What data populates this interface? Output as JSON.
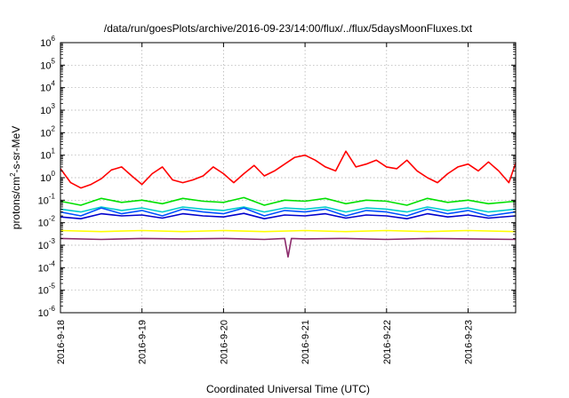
{
  "chart_data": {
    "type": "line",
    "title": "/data/run/goesPlots/archive/2016-09-23/14:00/flux/../flux/5daysMoonFluxes.txt",
    "xlabel": "Coordinated Universal Time (UTC)",
    "ylabel_parts": {
      "base": "protons/cm",
      "sup": "2",
      "rest": "-s-sr-MeV"
    },
    "y_scale": "log",
    "ylim": [
      1e-06,
      1000000.0
    ],
    "xlim": [
      "2016-09-18 00:00",
      "2016-09-23 14:00"
    ],
    "grid": true,
    "legend": "none",
    "x_ticks": [
      "2016-9-18",
      "2016-9-19",
      "2016-9-20",
      "2016-9-21",
      "2016-9-22",
      "2016-9-23"
    ],
    "y_ticks": [
      {
        "base": "10",
        "exp": "-6"
      },
      {
        "base": "10",
        "exp": "-5"
      },
      {
        "base": "10",
        "exp": "-4"
      },
      {
        "base": "10",
        "exp": "-3"
      },
      {
        "base": "10",
        "exp": "-2"
      },
      {
        "base": "10",
        "exp": "-1"
      },
      {
        "base": "10",
        "exp": "0"
      },
      {
        "base": "10",
        "exp": "1"
      },
      {
        "base": "10",
        "exp": "2"
      },
      {
        "base": "10",
        "exp": "3"
      },
      {
        "base": "10",
        "exp": "4"
      },
      {
        "base": "10",
        "exp": "5"
      },
      {
        "base": "10",
        "exp": "6"
      }
    ],
    "series": [
      {
        "color": "#ff0000",
        "x": [
          "2016-09-18 00:00",
          "2016-09-18 03:00",
          "2016-09-18 06:00",
          "2016-09-18 09:00",
          "2016-09-18 12:00",
          "2016-09-18 15:00",
          "2016-09-18 18:00",
          "2016-09-18 21:00",
          "2016-09-19 00:00",
          "2016-09-19 03:00",
          "2016-09-19 06:00",
          "2016-09-19 09:00",
          "2016-09-19 12:00",
          "2016-09-19 15:00",
          "2016-09-19 18:00",
          "2016-09-19 21:00",
          "2016-09-20 00:00",
          "2016-09-20 03:00",
          "2016-09-20 06:00",
          "2016-09-20 09:00",
          "2016-09-20 12:00",
          "2016-09-20 15:00",
          "2016-09-20 18:00",
          "2016-09-20 21:00",
          "2016-09-21 00:00",
          "2016-09-21 03:00",
          "2016-09-21 06:00",
          "2016-09-21 09:00",
          "2016-09-21 12:00",
          "2016-09-21 15:00",
          "2016-09-21 18:00",
          "2016-09-21 21:00",
          "2016-09-22 00:00",
          "2016-09-22 03:00",
          "2016-09-22 06:00",
          "2016-09-22 09:00",
          "2016-09-22 12:00",
          "2016-09-22 15:00",
          "2016-09-22 18:00",
          "2016-09-22 21:00",
          "2016-09-23 00:00",
          "2016-09-23 03:00",
          "2016-09-23 06:00",
          "2016-09-23 09:00",
          "2016-09-23 12:00",
          "2016-09-23 14:00"
        ],
        "y": [
          2.5,
          0.6,
          0.35,
          0.5,
          0.9,
          2.2,
          3.0,
          1.2,
          0.5,
          1.5,
          3.0,
          0.8,
          0.6,
          0.8,
          1.2,
          3.0,
          1.5,
          0.6,
          1.5,
          3.5,
          1.2,
          2.0,
          4.0,
          8.0,
          10.0,
          6.0,
          3.0,
          2.0,
          15.0,
          3.0,
          4.0,
          6.0,
          3.0,
          2.5,
          6.0,
          2.0,
          1.0,
          0.6,
          1.5,
          3.0,
          4.0,
          2.0,
          5.0,
          2.0,
          0.6,
          4.5
        ]
      },
      {
        "color": "#00e000",
        "x": [
          "2016-09-18 00:00",
          "2016-09-18 06:00",
          "2016-09-18 12:00",
          "2016-09-18 18:00",
          "2016-09-19 00:00",
          "2016-09-19 06:00",
          "2016-09-19 12:00",
          "2016-09-19 18:00",
          "2016-09-20 00:00",
          "2016-09-20 06:00",
          "2016-09-20 12:00",
          "2016-09-20 18:00",
          "2016-09-21 00:00",
          "2016-09-21 06:00",
          "2016-09-21 12:00",
          "2016-09-21 18:00",
          "2016-09-22 00:00",
          "2016-09-22 06:00",
          "2016-09-22 12:00",
          "2016-09-22 18:00",
          "2016-09-23 00:00",
          "2016-09-23 06:00",
          "2016-09-23 14:00"
        ],
        "y": [
          0.09,
          0.06,
          0.12,
          0.08,
          0.1,
          0.07,
          0.12,
          0.09,
          0.08,
          0.13,
          0.06,
          0.1,
          0.09,
          0.12,
          0.07,
          0.1,
          0.09,
          0.06,
          0.12,
          0.08,
          0.1,
          0.07,
          0.09
        ]
      },
      {
        "color": "#00cccc",
        "x": [
          "2016-09-18 00:00",
          "2016-09-18 06:00",
          "2016-09-18 12:00",
          "2016-09-18 18:00",
          "2016-09-19 00:00",
          "2016-09-19 06:00",
          "2016-09-19 12:00",
          "2016-09-19 18:00",
          "2016-09-20 00:00",
          "2016-09-20 06:00",
          "2016-09-20 12:00",
          "2016-09-20 18:00",
          "2016-09-21 00:00",
          "2016-09-21 06:00",
          "2016-09-21 12:00",
          "2016-09-21 18:00",
          "2016-09-22 00:00",
          "2016-09-22 06:00",
          "2016-09-22 12:00",
          "2016-09-22 18:00",
          "2016-09-23 00:00",
          "2016-09-23 06:00",
          "2016-09-23 14:00"
        ],
        "y": [
          0.04,
          0.03,
          0.05,
          0.035,
          0.045,
          0.03,
          0.05,
          0.04,
          0.035,
          0.05,
          0.03,
          0.045,
          0.04,
          0.05,
          0.03,
          0.045,
          0.04,
          0.03,
          0.05,
          0.035,
          0.045,
          0.03,
          0.04
        ]
      },
      {
        "color": "#0050ff",
        "x": [
          "2016-09-18 00:00",
          "2016-09-18 06:00",
          "2016-09-18 12:00",
          "2016-09-18 18:00",
          "2016-09-19 00:00",
          "2016-09-19 06:00",
          "2016-09-19 12:00",
          "2016-09-19 18:00",
          "2016-09-20 00:00",
          "2016-09-20 06:00",
          "2016-09-20 12:00",
          "2016-09-20 18:00",
          "2016-09-21 00:00",
          "2016-09-21 06:00",
          "2016-09-21 12:00",
          "2016-09-21 18:00",
          "2016-09-22 00:00",
          "2016-09-22 06:00",
          "2016-09-22 12:00",
          "2016-09-22 18:00",
          "2016-09-23 00:00",
          "2016-09-23 06:00",
          "2016-09-23 14:00"
        ],
        "y": [
          0.03,
          0.02,
          0.045,
          0.025,
          0.035,
          0.02,
          0.04,
          0.03,
          0.025,
          0.045,
          0.02,
          0.035,
          0.03,
          0.04,
          0.02,
          0.035,
          0.03,
          0.02,
          0.04,
          0.025,
          0.035,
          0.02,
          0.03
        ]
      },
      {
        "color": "#0000cc",
        "x": [
          "2016-09-18 00:00",
          "2016-09-18 06:00",
          "2016-09-18 12:00",
          "2016-09-18 18:00",
          "2016-09-19 00:00",
          "2016-09-19 06:00",
          "2016-09-19 12:00",
          "2016-09-19 18:00",
          "2016-09-20 00:00",
          "2016-09-20 06:00",
          "2016-09-20 12:00",
          "2016-09-20 18:00",
          "2016-09-21 00:00",
          "2016-09-21 06:00",
          "2016-09-21 12:00",
          "2016-09-21 18:00",
          "2016-09-22 00:00",
          "2016-09-22 06:00",
          "2016-09-22 12:00",
          "2016-09-22 18:00",
          "2016-09-23 00:00",
          "2016-09-23 06:00",
          "2016-09-23 14:00"
        ],
        "y": [
          0.018,
          0.015,
          0.025,
          0.02,
          0.022,
          0.016,
          0.025,
          0.02,
          0.018,
          0.026,
          0.015,
          0.022,
          0.02,
          0.025,
          0.016,
          0.022,
          0.02,
          0.015,
          0.025,
          0.018,
          0.022,
          0.016,
          0.02
        ]
      },
      {
        "color": "#ffff00",
        "x": [
          "2016-09-18 00:00",
          "2016-09-18 12:00",
          "2016-09-19 00:00",
          "2016-09-19 12:00",
          "2016-09-20 00:00",
          "2016-09-20 12:00",
          "2016-09-21 00:00",
          "2016-09-21 12:00",
          "2016-09-22 00:00",
          "2016-09-22 12:00",
          "2016-09-23 00:00",
          "2016-09-23 14:00"
        ],
        "y": [
          0.0045,
          0.004,
          0.0045,
          0.004,
          0.0045,
          0.004,
          0.0045,
          0.004,
          0.0045,
          0.004,
          0.0045,
          0.004
        ]
      },
      {
        "color": "#8b2a6b",
        "x": [
          "2016-09-18 00:00",
          "2016-09-18 12:00",
          "2016-09-19 00:00",
          "2016-09-19 12:00",
          "2016-09-20 00:00",
          "2016-09-20 12:00",
          "2016-09-20 18:00",
          "2016-09-20 19:00",
          "2016-09-20 20:00",
          "2016-09-21 00:00",
          "2016-09-21 12:00",
          "2016-09-22 00:00",
          "2016-09-22 12:00",
          "2016-09-23 00:00",
          "2016-09-23 14:00"
        ],
        "y": [
          0.002,
          0.0018,
          0.002,
          0.0019,
          0.002,
          0.0018,
          0.002,
          0.0003,
          0.002,
          0.0019,
          0.002,
          0.0018,
          0.002,
          0.0019,
          0.0018
        ]
      }
    ]
  }
}
